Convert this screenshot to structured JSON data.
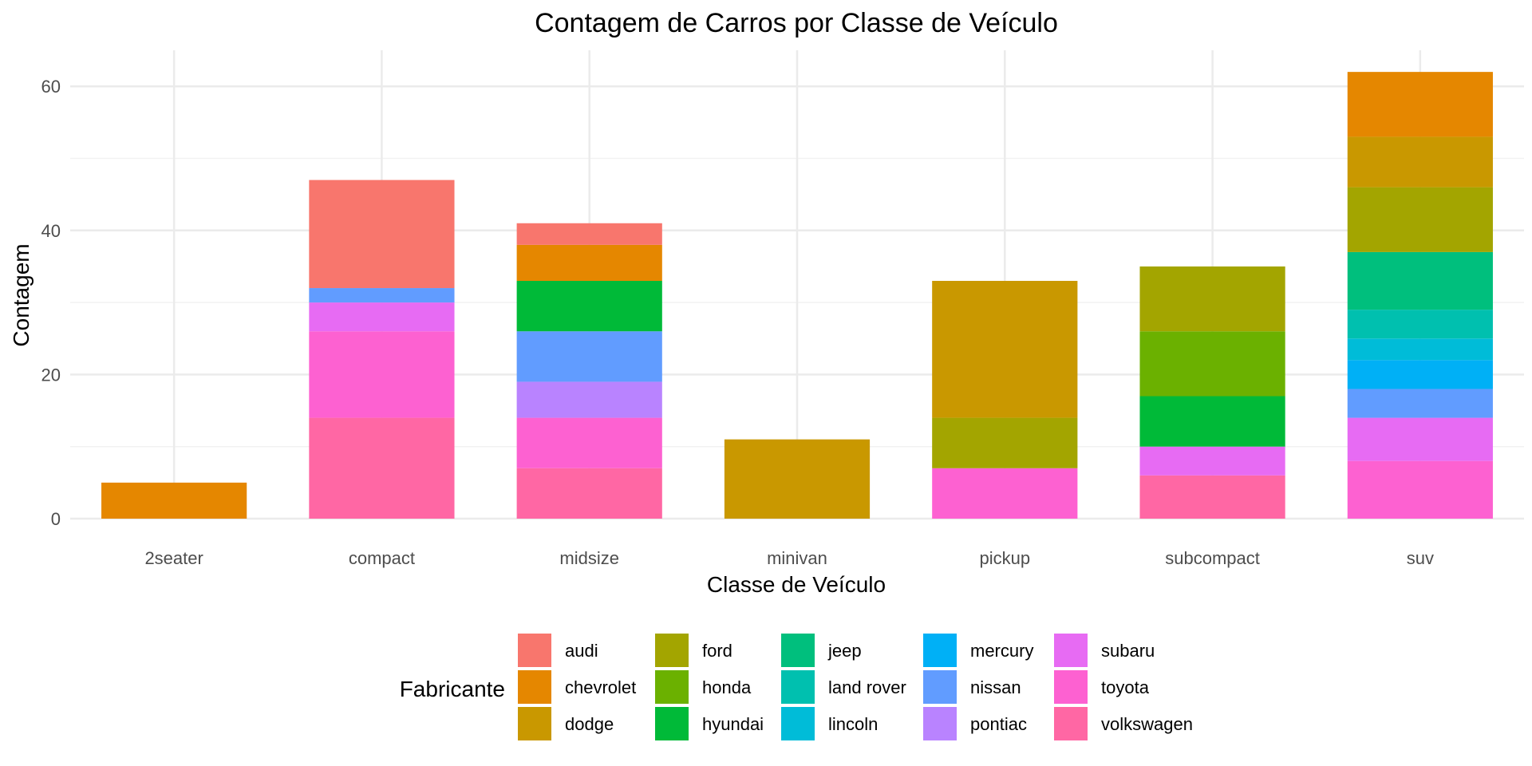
{
  "chart_data": {
    "type": "bar",
    "stacked": true,
    "title": "Contagem de Carros por Classe de Veículo",
    "xlabel": "Classe de Veículo",
    "ylabel": "Contagem",
    "ylim": [
      0,
      65
    ],
    "yticks": [
      0,
      20,
      40,
      60
    ],
    "grid": true,
    "legend_title": "Fabricante",
    "legend_position": "bottom",
    "categories": [
      "2seater",
      "compact",
      "midsize",
      "minivan",
      "pickup",
      "subcompact",
      "suv"
    ],
    "series": [
      {
        "name": "audi",
        "color": "#F8766D",
        "values": [
          0,
          15,
          3,
          0,
          0,
          0,
          0
        ]
      },
      {
        "name": "chevrolet",
        "color": "#E58700",
        "values": [
          5,
          0,
          5,
          0,
          0,
          0,
          9
        ]
      },
      {
        "name": "dodge",
        "color": "#C99800",
        "values": [
          0,
          0,
          0,
          11,
          19,
          0,
          7
        ]
      },
      {
        "name": "ford",
        "color": "#A3A500",
        "values": [
          0,
          0,
          0,
          0,
          7,
          9,
          9
        ]
      },
      {
        "name": "honda",
        "color": "#6BB100",
        "values": [
          0,
          0,
          0,
          0,
          0,
          9,
          0
        ]
      },
      {
        "name": "hyundai",
        "color": "#00BA38",
        "values": [
          0,
          0,
          7,
          0,
          0,
          7,
          0
        ]
      },
      {
        "name": "jeep",
        "color": "#00BF7D",
        "values": [
          0,
          0,
          0,
          0,
          0,
          0,
          8
        ]
      },
      {
        "name": "land rover",
        "color": "#00C0AF",
        "values": [
          0,
          0,
          0,
          0,
          0,
          0,
          4
        ]
      },
      {
        "name": "lincoln",
        "color": "#00BCD8",
        "values": [
          0,
          0,
          0,
          0,
          0,
          0,
          3
        ]
      },
      {
        "name": "mercury",
        "color": "#00B0F6",
        "values": [
          0,
          0,
          0,
          0,
          0,
          0,
          4
        ]
      },
      {
        "name": "nissan",
        "color": "#619CFF",
        "values": [
          0,
          2,
          7,
          0,
          0,
          0,
          4
        ]
      },
      {
        "name": "pontiac",
        "color": "#B983FF",
        "values": [
          0,
          0,
          5,
          0,
          0,
          0,
          0
        ]
      },
      {
        "name": "subaru",
        "color": "#E76BF3",
        "values": [
          0,
          4,
          0,
          0,
          0,
          4,
          6
        ]
      },
      {
        "name": "toyota",
        "color": "#FD61D1",
        "values": [
          0,
          12,
          7,
          0,
          7,
          0,
          8
        ]
      },
      {
        "name": "volkswagen",
        "color": "#FF67A4",
        "values": [
          0,
          14,
          7,
          0,
          0,
          6,
          0
        ]
      }
    ]
  }
}
